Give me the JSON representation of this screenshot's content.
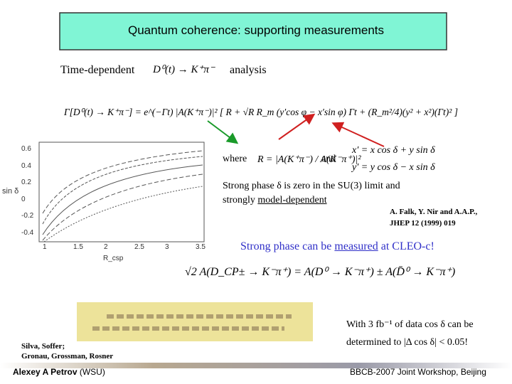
{
  "slide": {
    "title": "Quantum coherence: supporting measurements",
    "analysis_line": {
      "prefix": "Time-dependent",
      "process": "D⁰(t) → K⁺π⁻",
      "suffix": "analysis"
    },
    "rate_equation": "Γ[D⁰(t) → K⁺π⁻] = e^(−Γt) |A(K⁺π⁻)|² [ R + √R R_m (y′cos φ − x′sin φ) Γt + (R_m²/4)(y² + x²)(Γt)² ]",
    "where": "where",
    "ratio": "R = |A(K⁺π⁻) / A(K⁻π⁺)|²",
    "and": "and",
    "xprime": "x′ = x cos δ + y sin δ",
    "yprime": "y′ = y cos δ − x sin δ",
    "strong_phase_note": {
      "line1": "Strong phase δ is zero in the SU(3) limit and",
      "line2_prefix": "strongly",
      "line2_underlined": "model-dependent"
    },
    "reference": {
      "line1": "A. Falk, Y. Nir  and A.A.P.,",
      "line2": "JHEP 12 (1999)  019"
    },
    "cleo": {
      "before": "Strong phase can be",
      "underlined": "measured",
      "after": "at CLEO-c!"
    },
    "cp_equation": "√2 A(D_CP± → K⁻π⁺) = A(D⁰ → K⁻π⁺) ± A(D̄⁰ → K⁻π⁺)",
    "plot": {
      "y_label": "sin δ",
      "x_label": "R_csp",
      "yticks": [
        "0.6",
        "0.4",
        "0.2",
        "0",
        "-0.2",
        "-0.4"
      ],
      "xticks": [
        "1",
        "1.5",
        "2",
        "2.5",
        "3",
        "3.5"
      ]
    },
    "result": {
      "line1": "With 3 fb⁻¹ of data cos δ can be",
      "line2": "determined to |Δ cos δ| < 0.05!"
    },
    "authors": {
      "line1": "Silva, Soffer;",
      "line2": "Gronau, Grossman, Rosner"
    },
    "footer": {
      "left": "Alexey A Petrov",
      "left_suffix": "(WSU)",
      "right": "BBCB-2007 Joint Workshop, Beijing"
    }
  }
}
